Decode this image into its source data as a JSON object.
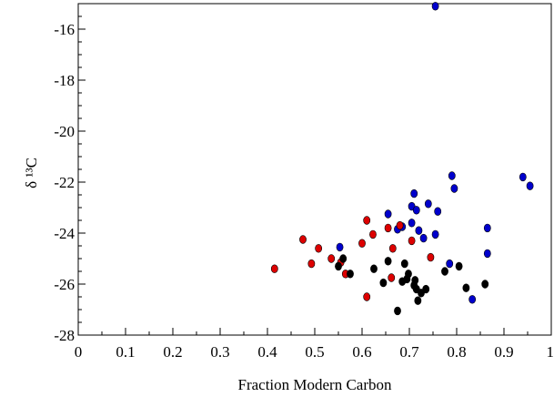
{
  "chart_data": {
    "type": "scatter",
    "title": "",
    "xlabel": "Fraction Modern Carbon",
    "ylabel": "δ ¹³C",
    "xlim": [
      0,
      1
    ],
    "ylim": [
      -28,
      -15
    ],
    "x_ticks": [
      "0",
      "0.1",
      "0.2",
      "0.3",
      "0.4",
      "0.5",
      "0.6",
      "0.7",
      "0.8",
      "0.9",
      "1"
    ],
    "y_ticks": [
      "-16",
      "-18",
      "-20",
      "-22",
      "-24",
      "-26",
      "-28"
    ],
    "grid": false,
    "legend": "none",
    "series": [
      {
        "color": "#0000cc",
        "points": [
          [
            0.755,
            -15.1
          ],
          [
            0.553,
            -24.55
          ],
          [
            0.655,
            -23.25
          ],
          [
            0.675,
            -23.85
          ],
          [
            0.685,
            -23.75
          ],
          [
            0.705,
            -23.6
          ],
          [
            0.71,
            -22.45
          ],
          [
            0.705,
            -22.95
          ],
          [
            0.715,
            -23.1
          ],
          [
            0.72,
            -23.9
          ],
          [
            0.73,
            -24.2
          ],
          [
            0.74,
            -22.85
          ],
          [
            0.755,
            -24.05
          ],
          [
            0.76,
            -23.15
          ],
          [
            0.785,
            -25.2
          ],
          [
            0.79,
            -21.75
          ],
          [
            0.795,
            -22.25
          ],
          [
            0.833,
            -26.6
          ],
          [
            0.865,
            -23.8
          ],
          [
            0.865,
            -24.8
          ],
          [
            0.94,
            -21.8
          ],
          [
            0.955,
            -22.15
          ]
        ]
      },
      {
        "color": "#dd0000",
        "points": [
          [
            0.415,
            -25.4
          ],
          [
            0.475,
            -24.25
          ],
          [
            0.493,
            -25.2
          ],
          [
            0.508,
            -24.6
          ],
          [
            0.535,
            -25.0
          ],
          [
            0.555,
            -25.15
          ],
          [
            0.565,
            -25.6
          ],
          [
            0.6,
            -24.4
          ],
          [
            0.61,
            -26.5
          ],
          [
            0.61,
            -23.5
          ],
          [
            0.623,
            -24.05
          ],
          [
            0.655,
            -23.8
          ],
          [
            0.662,
            -25.75
          ],
          [
            0.665,
            -24.6
          ],
          [
            0.68,
            -23.7
          ],
          [
            0.705,
            -24.3
          ],
          [
            0.745,
            -24.95
          ]
        ]
      },
      {
        "color": "#000000",
        "points": [
          [
            0.55,
            -25.3
          ],
          [
            0.56,
            -25.0
          ],
          [
            0.575,
            -25.6
          ],
          [
            0.625,
            -25.4
          ],
          [
            0.645,
            -25.95
          ],
          [
            0.655,
            -25.1
          ],
          [
            0.675,
            -27.05
          ],
          [
            0.685,
            -25.9
          ],
          [
            0.69,
            -25.2
          ],
          [
            0.695,
            -25.8
          ],
          [
            0.698,
            -25.6
          ],
          [
            0.71,
            -26.05
          ],
          [
            0.712,
            -25.85
          ],
          [
            0.715,
            -26.2
          ],
          [
            0.718,
            -26.65
          ],
          [
            0.725,
            -26.35
          ],
          [
            0.735,
            -26.2
          ],
          [
            0.775,
            -25.5
          ],
          [
            0.805,
            -25.3
          ],
          [
            0.82,
            -26.15
          ],
          [
            0.86,
            -26.0
          ]
        ]
      }
    ]
  }
}
